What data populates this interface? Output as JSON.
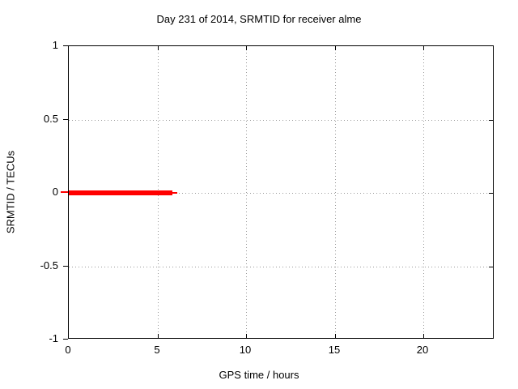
{
  "page": {
    "background": "#ffffff",
    "text_color": "#000000"
  },
  "chart_data": {
    "type": "line",
    "title": "Day 231 of 2014, SRMTID for receiver alme",
    "xlabel": "GPS time / hours",
    "ylabel": "SRMTID / TECUs",
    "xlim": [
      0,
      24
    ],
    "ylim": [
      -1,
      1
    ],
    "x_ticks": [
      0,
      5,
      10,
      15,
      20
    ],
    "y_ticks": [
      1,
      0.5,
      0,
      -0.5,
      -1
    ],
    "grid": true,
    "grid_style": "dotted",
    "grid_color": "#9a9a9a",
    "border_color": "#000000",
    "legend": null,
    "series": [
      {
        "name": "SRMTID",
        "color": "#ff0000",
        "y_value": 0,
        "segments": [
          {
            "x_start": 0,
            "x_end": 5.84,
            "y": 0,
            "weight": "thick"
          },
          {
            "x_start": 5.84,
            "x_end": 6.11,
            "y": 0,
            "weight": "thin"
          }
        ]
      }
    ]
  }
}
